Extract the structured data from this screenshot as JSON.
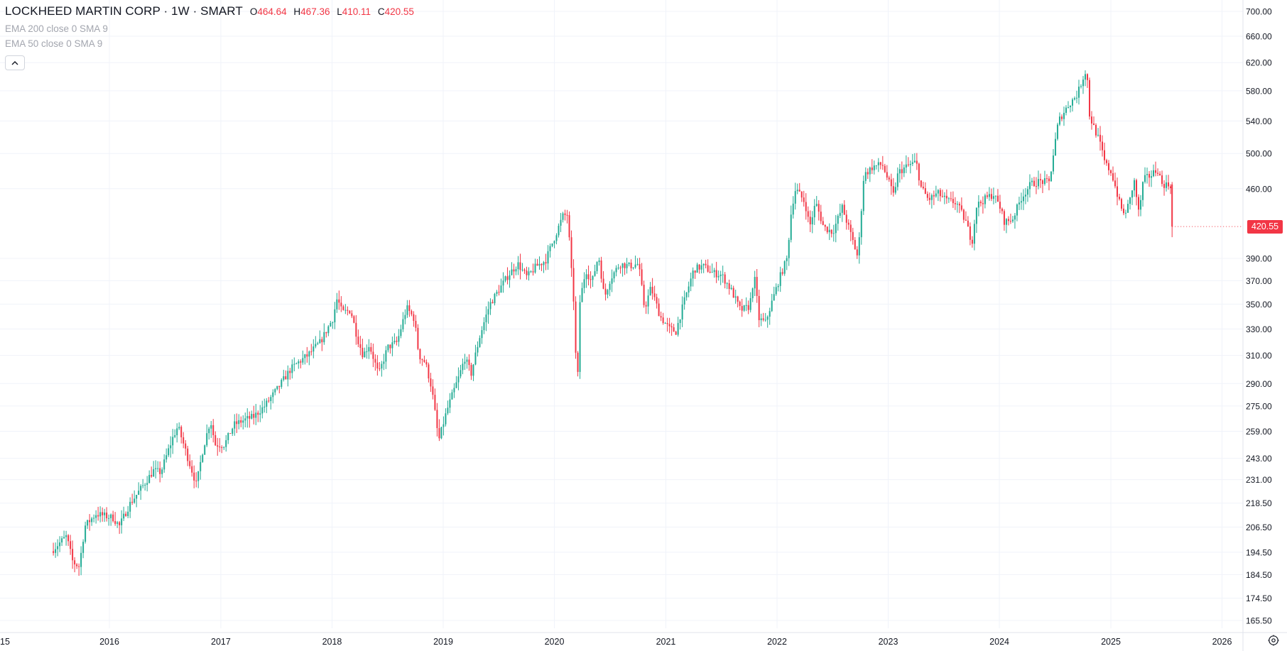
{
  "legend": {
    "title": "LOCKHEED MARTIN CORP · 1W · SMART",
    "ohlc": {
      "o_label": "O",
      "o": "464.64",
      "h_label": "H",
      "h": "467.36",
      "l_label": "L",
      "l": "410.11",
      "c_label": "C",
      "c": "420.55"
    },
    "indicators": [
      "EMA 200 close 0 SMA 9",
      "EMA 50 close 0 SMA 9"
    ]
  },
  "price_badge": "420.55",
  "colors": {
    "up": "#22ab94",
    "down": "#f23645",
    "grid": "#f0f3fa",
    "text": "#131722",
    "muted": "#a3a6af"
  },
  "icons": {
    "collapse": "chevron-up-icon",
    "settings": "gear-icon"
  },
  "chart_data": {
    "type": "candlestick",
    "interval": "1W",
    "scale": "log",
    "y_ticks": [
      700.0,
      660.0,
      620.0,
      580.0,
      540.0,
      500.0,
      460.0,
      420.55,
      390.0,
      370.0,
      350.0,
      330.0,
      310.0,
      290.0,
      275.0,
      259.0,
      243.0,
      231.0,
      218.5,
      206.5,
      194.5,
      184.5,
      174.5,
      165.5
    ],
    "y_tick_labels": [
      "700.00",
      "660.00",
      "620.00",
      "580.00",
      "540.00",
      "500.00",
      "460.00",
      "",
      "390.00",
      "370.00",
      "350.00",
      "330.00",
      "310.00",
      "290.00",
      "275.00",
      "259.00",
      "243.00",
      "231.00",
      "218.50",
      "206.50",
      "194.50",
      "184.50",
      "174.50",
      "165.50"
    ],
    "x_labels": [
      "15",
      "2016",
      "2017",
      "2018",
      "2019",
      "2020",
      "2021",
      "2022",
      "2023",
      "2024",
      "2025",
      "2026"
    ],
    "x_label_dates": [
      "2015-01-01",
      "2016-01-01",
      "2017-01-01",
      "2018-01-01",
      "2019-01-01",
      "2020-01-01",
      "2021-01-01",
      "2022-01-01",
      "2023-01-01",
      "2024-01-01",
      "2025-01-01",
      "2026-01-01"
    ],
    "grid": true,
    "anchors": [
      [
        "2015-07-01",
        195
      ],
      [
        "2015-08-20",
        202
      ],
      [
        "2015-09-10",
        190
      ],
      [
        "2015-10-01",
        188
      ],
      [
        "2015-10-20",
        207
      ],
      [
        "2015-11-25",
        213
      ],
      [
        "2016-01-20",
        211
      ],
      [
        "2016-02-10",
        207
      ],
      [
        "2016-03-15",
        218
      ],
      [
        "2016-04-20",
        226
      ],
      [
        "2016-06-01",
        236
      ],
      [
        "2016-06-25",
        235
      ],
      [
        "2016-08-05",
        256
      ],
      [
        "2016-08-20",
        262
      ],
      [
        "2016-09-20",
        244
      ],
      [
        "2016-10-20",
        228
      ],
      [
        "2016-11-10",
        248
      ],
      [
        "2016-12-05",
        266
      ],
      [
        "2016-12-20",
        251
      ],
      [
        "2017-01-20",
        251
      ],
      [
        "2017-02-20",
        263
      ],
      [
        "2017-03-25",
        266
      ],
      [
        "2017-04-25",
        268
      ],
      [
        "2017-06-01",
        275
      ],
      [
        "2017-07-15",
        287
      ],
      [
        "2017-08-25",
        300
      ],
      [
        "2017-09-20",
        305
      ],
      [
        "2017-10-20",
        310
      ],
      [
        "2017-12-01",
        320
      ],
      [
        "2018-01-10",
        338
      ],
      [
        "2018-01-25",
        355
      ],
      [
        "2018-02-10",
        343
      ],
      [
        "2018-03-10",
        345
      ],
      [
        "2018-04-01",
        323
      ],
      [
        "2018-04-20",
        310
      ],
      [
        "2018-05-10",
        318
      ],
      [
        "2018-06-10",
        296
      ],
      [
        "2018-07-10",
        316
      ],
      [
        "2018-08-10",
        320
      ],
      [
        "2018-09-10",
        347
      ],
      [
        "2018-10-05",
        338
      ],
      [
        "2018-10-20",
        310
      ],
      [
        "2018-11-10",
        305
      ],
      [
        "2018-12-01",
        287
      ],
      [
        "2018-12-24",
        253
      ],
      [
        "2019-01-20",
        272
      ],
      [
        "2019-03-01",
        295
      ],
      [
        "2019-03-20",
        308
      ],
      [
        "2019-04-10",
        297
      ],
      [
        "2019-05-10",
        326
      ],
      [
        "2019-06-10",
        350
      ],
      [
        "2019-07-10",
        362
      ],
      [
        "2019-08-10",
        375
      ],
      [
        "2019-09-10",
        385
      ],
      [
        "2019-10-10",
        373
      ],
      [
        "2019-11-10",
        383
      ],
      [
        "2019-12-10",
        388
      ],
      [
        "2020-01-10",
        411
      ],
      [
        "2020-02-05",
        431
      ],
      [
        "2020-02-21",
        433
      ],
      [
        "2020-03-01",
        387
      ],
      [
        "2020-03-10",
        360
      ],
      [
        "2020-03-23",
        280
      ],
      [
        "2020-04-01",
        352
      ],
      [
        "2020-04-20",
        380
      ],
      [
        "2020-05-10",
        368
      ],
      [
        "2020-06-01",
        393
      ],
      [
        "2020-06-20",
        355
      ],
      [
        "2020-07-10",
        372
      ],
      [
        "2020-08-10",
        385
      ],
      [
        "2020-09-10",
        383
      ],
      [
        "2020-10-10",
        385
      ],
      [
        "2020-10-30",
        346
      ],
      [
        "2020-11-20",
        364
      ],
      [
        "2020-12-20",
        340
      ],
      [
        "2021-01-20",
        330
      ],
      [
        "2021-02-10",
        328
      ],
      [
        "2021-03-01",
        345
      ],
      [
        "2021-04-10",
        380
      ],
      [
        "2021-05-10",
        383
      ],
      [
        "2021-06-10",
        377
      ],
      [
        "2021-07-10",
        375
      ],
      [
        "2021-08-10",
        362
      ],
      [
        "2021-09-10",
        345
      ],
      [
        "2021-10-10",
        348
      ],
      [
        "2021-10-25",
        375
      ],
      [
        "2021-11-10",
        338
      ],
      [
        "2021-12-01",
        335
      ],
      [
        "2021-12-20",
        350
      ],
      [
        "2022-01-20",
        375
      ],
      [
        "2022-02-10",
        390
      ],
      [
        "2022-02-25",
        440
      ],
      [
        "2022-03-10",
        460
      ],
      [
        "2022-04-10",
        445
      ],
      [
        "2022-04-25",
        420
      ],
      [
        "2022-05-15",
        445
      ],
      [
        "2022-06-10",
        420
      ],
      [
        "2022-07-10",
        415
      ],
      [
        "2022-08-10",
        440
      ],
      [
        "2022-09-10",
        410
      ],
      [
        "2022-10-01",
        390
      ],
      [
        "2022-10-20",
        475
      ],
      [
        "2022-11-20",
        485
      ],
      [
        "2022-12-20",
        487
      ],
      [
        "2023-01-25",
        453
      ],
      [
        "2023-02-10",
        478
      ],
      [
        "2023-03-10",
        485
      ],
      [
        "2023-04-10",
        490
      ],
      [
        "2023-04-25",
        462
      ],
      [
        "2023-05-20",
        448
      ],
      [
        "2023-06-20",
        455
      ],
      [
        "2023-07-20",
        447
      ],
      [
        "2023-08-20",
        445
      ],
      [
        "2023-09-20",
        425
      ],
      [
        "2023-10-10",
        405
      ],
      [
        "2023-10-25",
        442
      ],
      [
        "2023-12-01",
        451
      ],
      [
        "2023-12-20",
        454
      ],
      [
        "2024-01-10",
        440
      ],
      [
        "2024-01-25",
        425
      ],
      [
        "2024-02-20",
        428
      ],
      [
        "2024-03-20",
        450
      ],
      [
        "2024-04-20",
        465
      ],
      [
        "2024-05-20",
        468
      ],
      [
        "2024-06-20",
        467
      ],
      [
        "2024-07-20",
        540
      ],
      [
        "2024-08-20",
        560
      ],
      [
        "2024-09-20",
        575
      ],
      [
        "2024-10-10",
        600
      ],
      [
        "2024-10-21",
        612
      ],
      [
        "2024-10-28",
        550
      ],
      [
        "2024-11-10",
        535
      ],
      [
        "2024-12-01",
        515
      ],
      [
        "2024-12-20",
        488
      ],
      [
        "2025-01-10",
        478
      ],
      [
        "2025-02-05",
        445
      ],
      [
        "2025-02-20",
        432
      ],
      [
        "2025-03-10",
        445
      ],
      [
        "2025-03-25",
        470
      ],
      [
        "2025-04-10",
        433
      ],
      [
        "2025-04-25",
        470
      ],
      [
        "2025-05-20",
        475
      ],
      [
        "2025-06-10",
        482
      ],
      [
        "2025-06-25",
        465
      ],
      [
        "2025-07-15",
        464
      ]
    ],
    "last_candle": {
      "date": "2025-07-21",
      "open": 464.64,
      "high": 467.36,
      "low": 410.11,
      "close": 420.55
    }
  }
}
